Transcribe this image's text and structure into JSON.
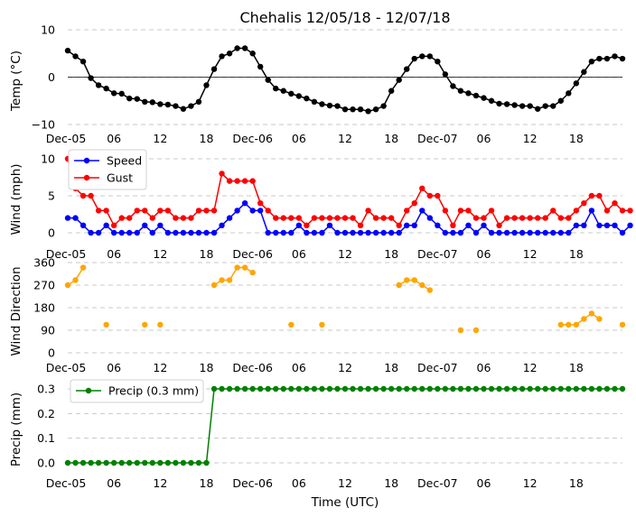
{
  "chart_data": [
    {
      "type": "line",
      "title": "Chehalis 12/05/18 - 12/07/18",
      "xlabel": "",
      "ylabel": "Temp ($^\\circ$C)",
      "ylabel_display": "Temp (°C)",
      "ylim": [
        -10,
        10
      ],
      "yticks": [
        "10",
        "0",
        "−10"
      ],
      "xlim": [
        0,
        72
      ],
      "xticks": [
        {
          "x": 0,
          "label": "Dec-05"
        },
        {
          "x": 6,
          "label": "06"
        },
        {
          "x": 12,
          "label": "12"
        },
        {
          "x": 18,
          "label": "18"
        },
        {
          "x": 24,
          "label": "Dec-06"
        },
        {
          "x": 30,
          "label": "06"
        },
        {
          "x": 36,
          "label": "12"
        },
        {
          "x": 42,
          "label": "18"
        },
        {
          "x": 48,
          "label": "Dec-07"
        },
        {
          "x": 54,
          "label": "06"
        },
        {
          "x": 60,
          "label": "12"
        },
        {
          "x": 66,
          "label": "18"
        }
      ],
      "hline": 0,
      "series": [
        {
          "name": "Temp",
          "color": "#000000",
          "x_start": 0,
          "x_step": 1,
          "values": [
            5.6,
            4.4,
            3.3,
            -0.2,
            -1.7,
            -2.4,
            -3.4,
            -3.5,
            -4.5,
            -4.6,
            -5.2,
            -5.3,
            -5.7,
            -5.8,
            -6.1,
            -6.7,
            -6.1,
            -5.2,
            -1.7,
            1.7,
            4.4,
            5.0,
            6.1,
            6.1,
            5.0,
            2.2,
            -0.6,
            -2.4,
            -2.9,
            -3.5,
            -4.0,
            -4.5,
            -5.2,
            -5.7,
            -6.0,
            -6.1,
            -6.8,
            -6.8,
            -6.8,
            -7.2,
            -6.8,
            -6.1,
            -2.9,
            -0.6,
            1.7,
            3.9,
            4.4,
            4.4,
            3.3,
            0.6,
            -1.9,
            -2.9,
            -3.4,
            -3.9,
            -4.4,
            -5.0,
            -5.6,
            -5.7,
            -5.9,
            -6.1,
            -6.1,
            -6.7,
            -6.1,
            -6.1,
            -5.0,
            -3.4,
            -1.3,
            1.1,
            3.3,
            3.9,
            3.9,
            4.4,
            3.9
          ]
        }
      ]
    },
    {
      "type": "line",
      "ylabel": "Wind (mph)",
      "ylim": [
        0,
        10
      ],
      "yticks": [
        "10",
        "5",
        "0"
      ],
      "xticks_same_as_first": true,
      "legend": "top-left",
      "series": [
        {
          "name": "Speed",
          "color": "#0000ff",
          "x_start": 0,
          "x_step": 1,
          "values": [
            2,
            2,
            1,
            0,
            0,
            1,
            0,
            0,
            0,
            0,
            1,
            0,
            1,
            0,
            0,
            0,
            0,
            0,
            0,
            0,
            1,
            2,
            3,
            4,
            3,
            3,
            0,
            0,
            0,
            0,
            1,
            0,
            0,
            0,
            1,
            0,
            0,
            0,
            0,
            0,
            0,
            0,
            0,
            0,
            1,
            1,
            3,
            2,
            1,
            0,
            0,
            0,
            1,
            0,
            1,
            0,
            0,
            0,
            0,
            0,
            0,
            0,
            0,
            0,
            0,
            0,
            1,
            1,
            3,
            1,
            1,
            1,
            0,
            1
          ]
        },
        {
          "name": "Gust",
          "color": "#ff0000",
          "x_start": 0,
          "x_step": 1,
          "values": [
            10,
            6,
            5,
            5,
            3,
            3,
            1,
            2,
            2,
            3,
            3,
            2,
            3,
            3,
            2,
            2,
            2,
            3,
            3,
            3,
            8,
            7,
            7,
            7,
            7,
            4,
            3,
            2,
            2,
            2,
            2,
            1,
            2,
            2,
            2,
            2,
            2,
            2,
            1,
            3,
            2,
            2,
            2,
            1,
            3,
            4,
            6,
            5,
            5,
            3,
            1,
            3,
            3,
            2,
            2,
            3,
            1,
            2,
            2,
            2,
            2,
            2,
            2,
            3,
            2,
            2,
            3,
            4,
            5,
            5,
            3,
            4,
            3,
            3
          ]
        }
      ]
    },
    {
      "type": "line",
      "ylabel": "Wind Direction",
      "ylim": [
        0,
        360
      ],
      "yticks": [
        "360",
        "270",
        "180",
        "90",
        "0"
      ],
      "series": [
        {
          "name": "Direction",
          "color": "#ffa500",
          "points": [
            [
              0,
              270
            ],
            [
              1,
              290
            ],
            [
              2,
              340
            ],
            [
              5,
              112
            ],
            [
              10,
              112
            ],
            [
              12,
              112
            ],
            [
              19,
              270
            ],
            [
              20,
              290
            ],
            [
              21,
              290
            ],
            [
              22,
              340
            ],
            [
              23,
              340
            ],
            [
              24,
              320
            ],
            [
              29,
              112
            ],
            [
              33,
              112
            ],
            [
              43,
              270
            ],
            [
              44,
              290
            ],
            [
              45,
              290
            ],
            [
              46,
              270
            ],
            [
              47,
              250
            ],
            [
              51,
              90
            ],
            [
              53,
              90
            ],
            [
              64,
              112
            ],
            [
              65,
              112
            ],
            [
              66,
              112
            ],
            [
              67,
              135
            ],
            [
              68,
              157
            ],
            [
              69,
              135
            ],
            [
              72,
              112
            ]
          ],
          "segments": [
            [
              0,
              1,
              2
            ],
            [
              19,
              20,
              21,
              22,
              23,
              24
            ],
            [
              43,
              44,
              45,
              46,
              47
            ],
            [
              64,
              65,
              66,
              67,
              68,
              69
            ]
          ]
        }
      ]
    },
    {
      "type": "line",
      "ylabel": "Precip (mm)",
      "xlabel": "Time (UTC)",
      "ylim": [
        0,
        0.3
      ],
      "yticks": [
        "0.3",
        "0.2",
        "0.1",
        "0.0"
      ],
      "legend": "top-left",
      "series": [
        {
          "name": "Precip (0.3 mm)",
          "color": "#008000",
          "x_start": 0,
          "x_step": 1,
          "values": [
            0,
            0,
            0,
            0,
            0,
            0,
            0,
            0,
            0,
            0,
            0,
            0,
            0,
            0,
            0,
            0,
            0,
            0,
            0,
            0.3,
            0.3,
            0.3,
            0.3,
            0.3,
            0.3,
            0.3,
            0.3,
            0.3,
            0.3,
            0.3,
            0.3,
            0.3,
            0.3,
            0.3,
            0.3,
            0.3,
            0.3,
            0.3,
            0.3,
            0.3,
            0.3,
            0.3,
            0.3,
            0.3,
            0.3,
            0.3,
            0.3,
            0.3,
            0.3,
            0.3,
            0.3,
            0.3,
            0.3,
            0.3,
            0.3,
            0.3,
            0.3,
            0.3,
            0.3,
            0.3,
            0.3,
            0.3,
            0.3,
            0.3,
            0.3,
            0.3,
            0.3,
            0.3,
            0.3,
            0.3,
            0.3,
            0.3,
            0.3
          ]
        }
      ]
    }
  ]
}
